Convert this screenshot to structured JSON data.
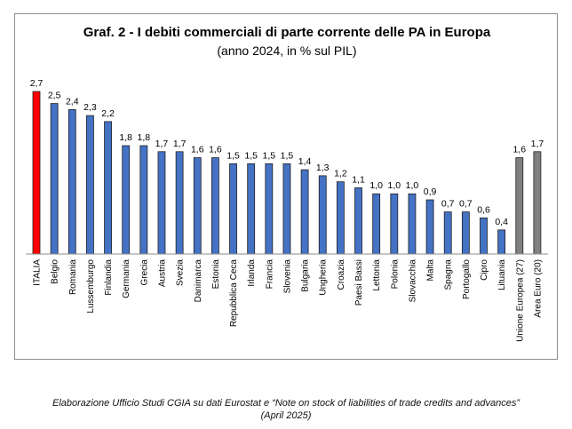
{
  "chart_data": {
    "type": "bar",
    "title": "Graf.  2 - I debiti commerciali di parte corrente delle PA in Europa",
    "subtitle": "(anno 2024, in % sul PIL)",
    "categories": [
      "ITALIA",
      "Belgio",
      "Romania",
      "Lussemburgo",
      "Finlandia",
      "Germania",
      "Grecia",
      "Austria",
      "Svezia",
      "Danimarca",
      "Estonia",
      "Repubblica Ceca",
      "Irlanda",
      "Francia",
      "Slovenia",
      "Bulgaria",
      "Ungheria",
      "Croazia",
      "Paesi Bassi",
      "Lettonia",
      "Polonia",
      "Slovacchia",
      "Malta",
      "Spagna",
      "Portogallo",
      "Cipro",
      "Lituania",
      "Unione Europea (27)",
      "Area Euro (20)"
    ],
    "values": [
      2.7,
      2.5,
      2.4,
      2.3,
      2.2,
      1.8,
      1.8,
      1.7,
      1.7,
      1.6,
      1.6,
      1.5,
      1.5,
      1.5,
      1.5,
      1.4,
      1.3,
      1.2,
      1.1,
      1.0,
      1.0,
      1.0,
      0.9,
      0.7,
      0.7,
      0.6,
      0.4,
      1.6,
      1.7
    ],
    "value_labels": [
      "2,7",
      "2,5",
      "2,4",
      "2,3",
      "2,2",
      "1,8",
      "1,8",
      "1,7",
      "1,7",
      "1,6",
      "1,6",
      "1,5",
      "1,5",
      "1,5",
      "1,5",
      "1,4",
      "1,3",
      "1,2",
      "1,1",
      "1,0",
      "1,0",
      "1,0",
      "0,9",
      "0,7",
      "0,7",
      "0,6",
      "0,4",
      "1,6",
      "1,7"
    ],
    "bar_colors": [
      "#ff0000",
      "#4472c4",
      "#4472c4",
      "#4472c4",
      "#4472c4",
      "#4472c4",
      "#4472c4",
      "#4472c4",
      "#4472c4",
      "#4472c4",
      "#4472c4",
      "#4472c4",
      "#4472c4",
      "#4472c4",
      "#4472c4",
      "#4472c4",
      "#4472c4",
      "#4472c4",
      "#4472c4",
      "#4472c4",
      "#4472c4",
      "#4472c4",
      "#4472c4",
      "#4472c4",
      "#4472c4",
      "#4472c4",
      "#4472c4",
      "#808080",
      "#808080"
    ],
    "ylim": [
      0,
      2.7
    ],
    "grid": false,
    "xlabel": "",
    "ylabel": ""
  },
  "caption": {
    "line1": "Elaborazione Ufficio Studi CGIA su dati Eurostat e “Note on stock of liabilities of trade credits and advances”",
    "line2": "(April 2025)"
  }
}
